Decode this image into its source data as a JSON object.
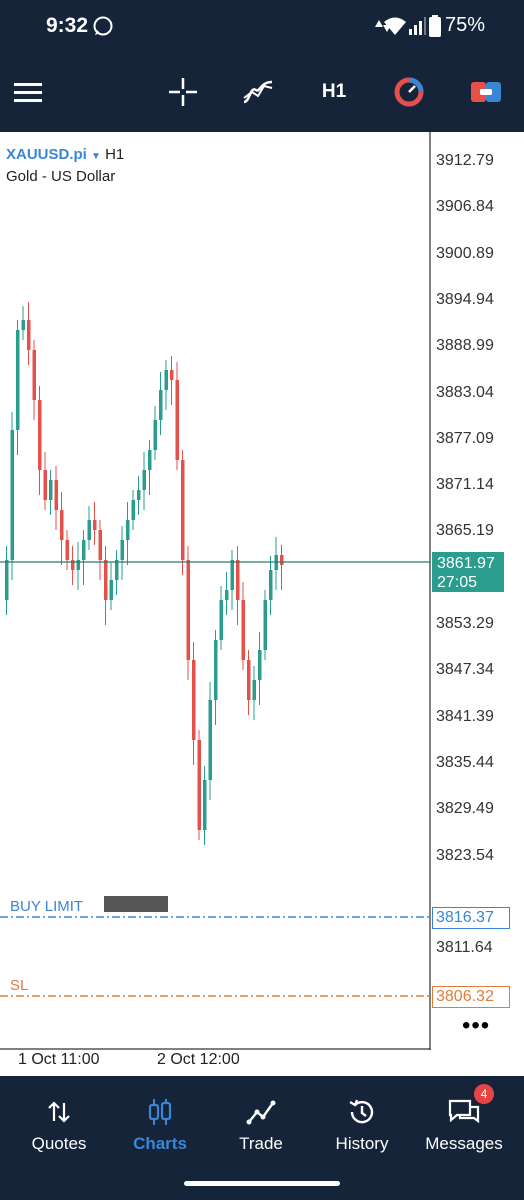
{
  "status": {
    "time": "9:32",
    "battery": "75%"
  },
  "toolbar": {
    "timeframe": "H1"
  },
  "chart": {
    "symbol": "XAUUSD.pi",
    "timeframe": "H1",
    "description": "Gold - US Dollar",
    "price_ticks": [
      "3912.79",
      "3906.84",
      "3900.89",
      "3894.94",
      "3888.99",
      "3883.04",
      "3877.09",
      "3871.14",
      "3865.19",
      "3853.29",
      "3847.34",
      "3841.39",
      "3835.44",
      "3829.49",
      "3823.54",
      "3811.64"
    ],
    "current_price": "3861.97",
    "countdown": "27:05",
    "buy_limit_label": "BUY LIMIT",
    "buy_limit_price": "3816.37",
    "sl_label": "SL",
    "sl_price": "3806.32",
    "time_ticks": [
      "1 Oct 11:00",
      "2 Oct 12:00"
    ],
    "colors": {
      "bull": "#2a9d8f",
      "bear": "#e5504b",
      "buy_limit": "#3a86d4",
      "sl": "#e07b39"
    }
  },
  "nav": {
    "items": [
      {
        "label": "Quotes",
        "icon": "arrows-updown-icon"
      },
      {
        "label": "Charts",
        "icon": "candles-icon"
      },
      {
        "label": "Trade",
        "icon": "trend-icon"
      },
      {
        "label": "History",
        "icon": "history-icon"
      },
      {
        "label": "Messages",
        "icon": "messages-icon"
      }
    ],
    "messages_badge": "4"
  }
}
